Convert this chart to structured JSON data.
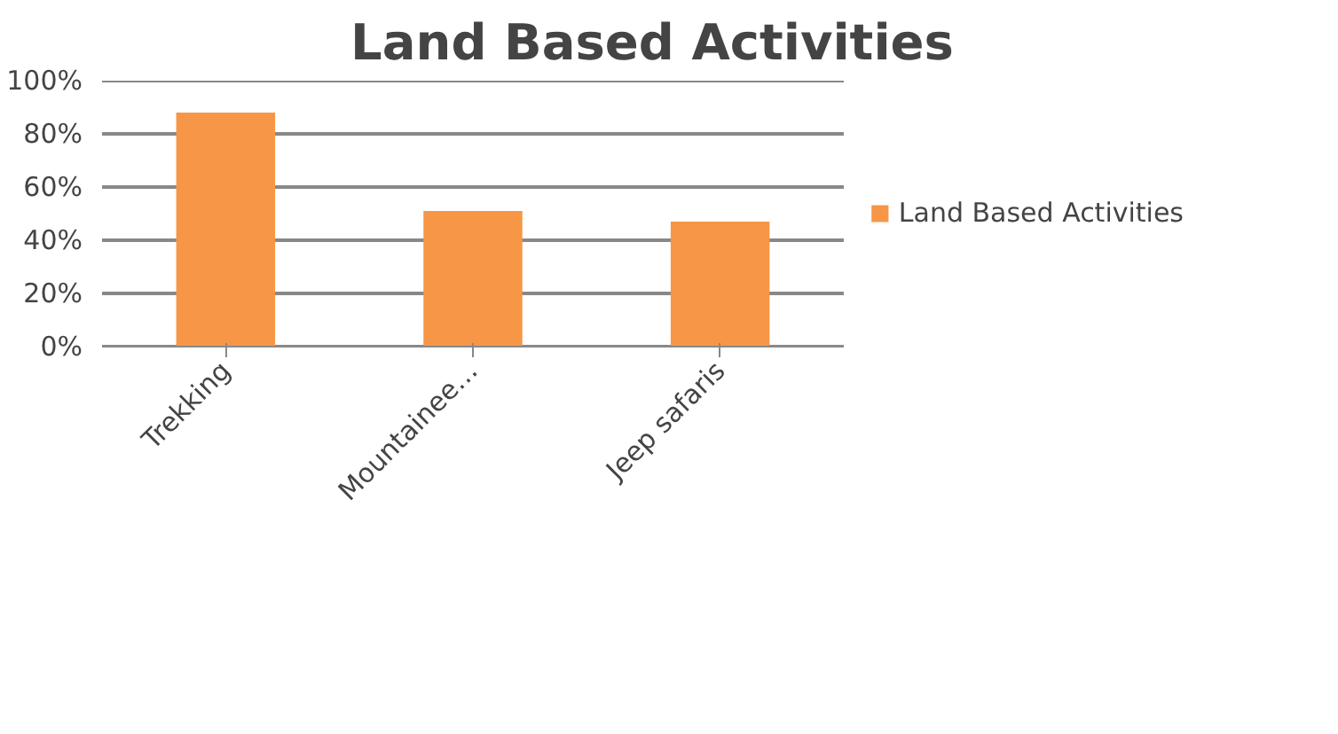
{
  "chart_data": {
    "type": "bar",
    "title": "Land Based Activities",
    "categories": [
      "Trekking",
      "Mountainee…",
      "Jeep safaris"
    ],
    "series": [
      {
        "name": "Land Based Activities",
        "color": "#f79646",
        "values": [
          88,
          51,
          47
        ]
      }
    ],
    "ylim": [
      0,
      100
    ],
    "yticks": [
      {
        "value": 0,
        "label": "0%"
      },
      {
        "value": 20,
        "label": "20%"
      },
      {
        "value": 40,
        "label": "40%"
      },
      {
        "value": 60,
        "label": "60%"
      },
      {
        "value": 80,
        "label": "80%"
      },
      {
        "value": 100,
        "label": "100%"
      }
    ],
    "grid": "y",
    "legend": "right"
  }
}
